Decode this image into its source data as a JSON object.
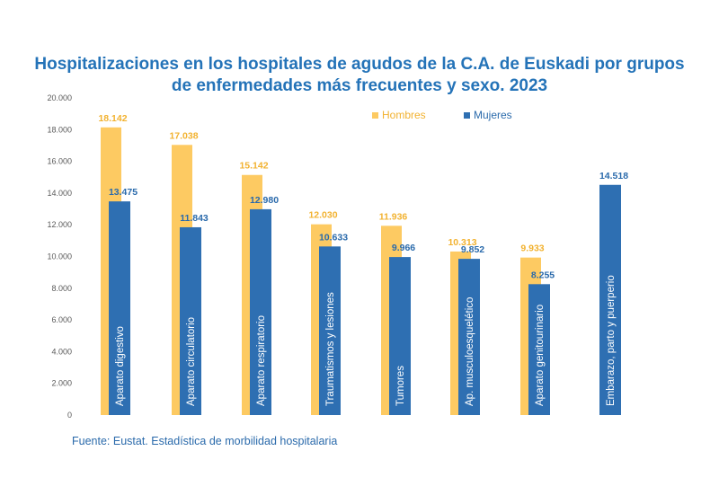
{
  "chart_data": {
    "type": "bar",
    "title_line1": "Hospitalizaciones en los hospitales de agudos de la C.A. de Euskadi por grupos",
    "title_line2": "de enfermedades más frecuentes y sexo. 2023",
    "categories": [
      "Aparato digestivo",
      "Aparato circulatorio",
      "Aparato respiratorio",
      "Traumatismos y lesiones",
      "Tumores",
      "Ap. musculoesquelético",
      "Aparato genitourinario",
      "Embarazo, parto y puerperio"
    ],
    "series": [
      {
        "name": "Hombres",
        "color": "#fdca62",
        "label_color": "#f2b230",
        "values": [
          18142,
          17038,
          15142,
          12030,
          11936,
          10313,
          9933,
          null
        ],
        "labels": [
          "18.142",
          "17.038",
          "15.142",
          "12.030",
          "11.936",
          "10.313",
          "9.933",
          ""
        ]
      },
      {
        "name": "Mujeres",
        "color": "#2e6fb2",
        "label_color": "#2a6aab",
        "values": [
          13475,
          11843,
          12980,
          10633,
          9966,
          9852,
          8255,
          14518
        ],
        "labels": [
          "13.475",
          "11.843",
          "12.980",
          "10.633",
          "9.966",
          "9.852",
          "8.255",
          "14.518"
        ]
      }
    ],
    "y_ticks": [
      0,
      2000,
      4000,
      6000,
      8000,
      10000,
      12000,
      14000,
      16000,
      18000,
      20000
    ],
    "y_tick_labels": [
      "0",
      "2.000",
      "4.000",
      "6.000",
      "8.000",
      "10.000",
      "12.000",
      "14.000",
      "16.000",
      "18.000",
      "20.000"
    ],
    "ylim": [
      0,
      20000
    ],
    "legend_position": "top-right",
    "grid": false
  },
  "source": "Fuente: Eustat. Estadística de morbilidad hospitalaria"
}
